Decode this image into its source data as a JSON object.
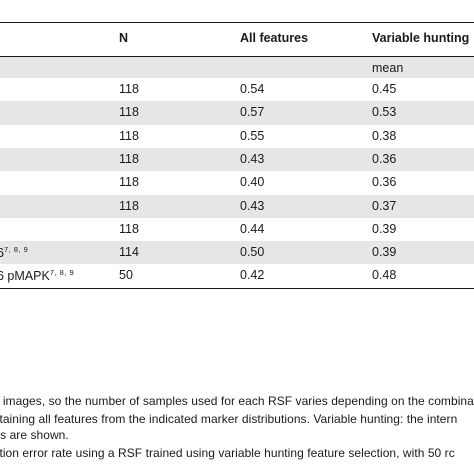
{
  "table": {
    "headers": [
      "N",
      "All features",
      "Variable hunting"
    ],
    "subheader": "mean",
    "rows": [
      {
        "label": "",
        "label_sup": "",
        "n": "118",
        "all": "0.54",
        "vh": "0.45"
      },
      {
        "label": "",
        "label_sup": "",
        "n": "118",
        "all": "0.57",
        "vh": "0.53"
      },
      {
        "label": "",
        "label_sup": "",
        "n": "118",
        "all": "0.55",
        "vh": "0.38"
      },
      {
        "label": "",
        "label_sup": "",
        "n": "118",
        "all": "0.43",
        "vh": "0.36"
      },
      {
        "label": "",
        "label_sup": "",
        "n": "118",
        "all": "0.40",
        "vh": "0.36"
      },
      {
        "label": "",
        "label_sup": "",
        "n": "118",
        "all": "0.43",
        "vh": "0.37"
      },
      {
        "label": "",
        "label_sup": "",
        "n": "118",
        "all": "0.44",
        "vh": "0.39"
      },
      {
        "label": "6",
        "label_sup": "7, 8, 9",
        "n": "114",
        "all": "0.50",
        "vh": "0.39"
      },
      {
        "label": "6 pMAPK",
        "label_sup": "7, 8, 9",
        "n": "50",
        "all": "0.42",
        "vh": "0.48"
      }
    ]
  },
  "footnotes": [
    "ed images, so the number of samples used for each RSF varies depending on the combina",
    "ontaining all features from the indicated marker distributions. Variable hunting: the intern",
    "rtes are shown.",
    "dation error rate using a RSF trained using variable hunting feature selection, with 50 rc"
  ]
}
